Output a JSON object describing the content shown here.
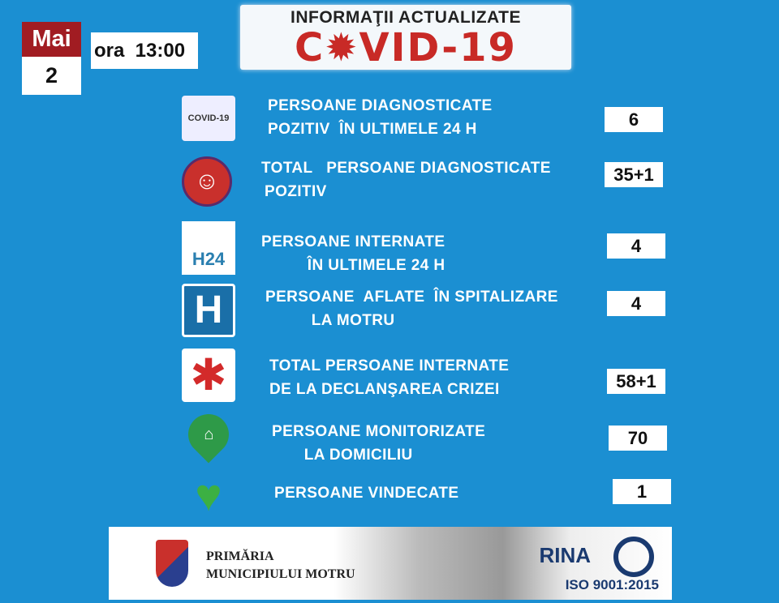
{
  "date": {
    "month": "Mai",
    "day": "2",
    "time": "ora  13:00"
  },
  "banner": {
    "line1": "INFORMAŢII ACTUALIZATE",
    "line2": "C✹VID-19"
  },
  "rows": [
    {
      "icon": "covid-19-icon",
      "icon_text": "COVID-19",
      "lines": [
        "PERSOANE DIAGNOSTICATE",
        "POZITIV  ÎN ULTIMELE 24 H"
      ],
      "value": "6"
    },
    {
      "icon": "sick-person-icon",
      "lines": [
        "TOTAL   PERSOANE DIAGNOSTICATE",
        "POZITIV"
      ],
      "value": "35+1"
    },
    {
      "icon": "h24-icon",
      "icon_text": "H24",
      "lines": [
        "PERSOANE INTERNATE",
        "          ÎN ULTIMELE 24 H"
      ],
      "value": "4"
    },
    {
      "icon": "hospital-icon",
      "icon_text": "H",
      "lines": [
        "PERSOANE  AFLATE  ÎN SPITALIZARE",
        "          LA MOTRU"
      ],
      "value": "4"
    },
    {
      "icon": "medical-star-icon",
      "lines": [
        "TOTAL PERSOANE INTERNATE",
        "DE LA DECLANŞAREA CRIZEI"
      ],
      "value": "58+1"
    },
    {
      "icon": "home-pin-icon",
      "lines": [
        "PERSOANE MONITORIZATE",
        "       LA DOMICILIU"
      ],
      "value": "70"
    },
    {
      "icon": "heart-pulse-icon",
      "lines": [
        "PERSOANE VINDECATE"
      ],
      "value": "1"
    }
  ],
  "footer": {
    "line1": "PRIMĂRIA",
    "line2": "MUNICIPIULUI MOTRU",
    "cert_logo": "RINA",
    "iso": "ISO 9001:2015"
  },
  "colors": {
    "background": "#1b8fd2",
    "accent_red": "#c82a26",
    "month_bg": "#a11c22"
  }
}
